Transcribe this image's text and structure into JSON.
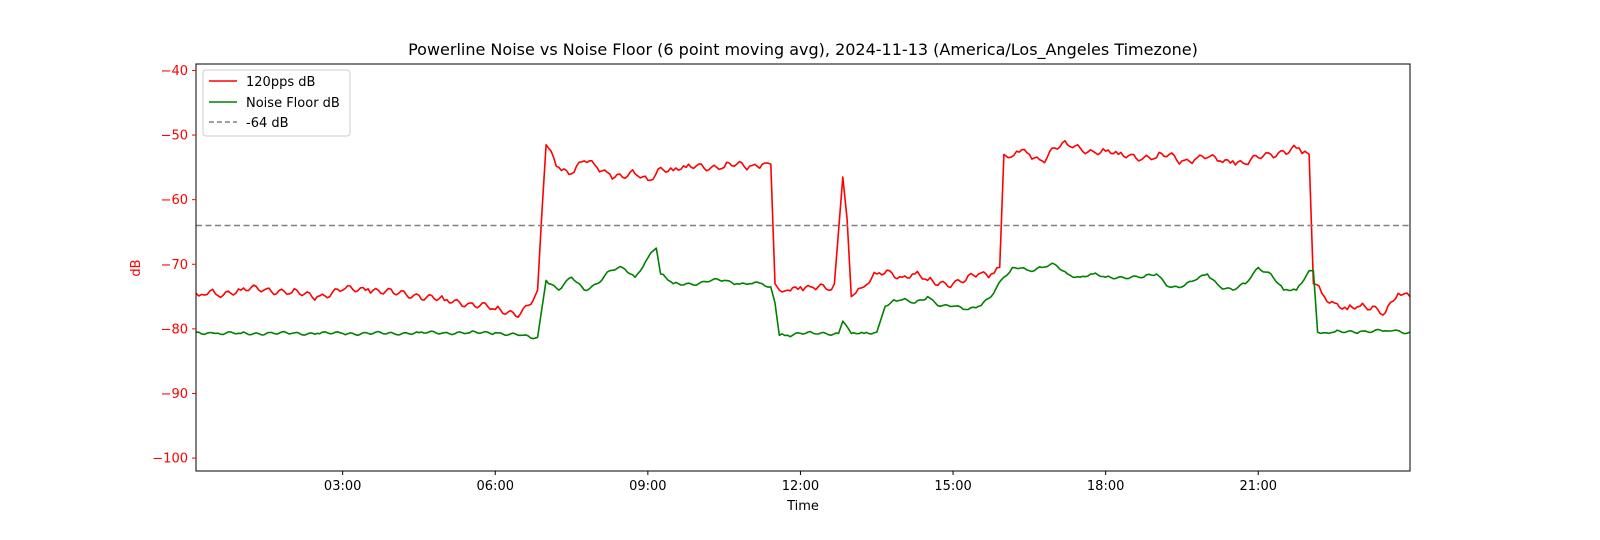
{
  "chart_data": {
    "type": "line",
    "title": "Powerline Noise vs Noise Floor (6 point moving avg), 2024-11-13 (America/Los_Angeles Timezone)",
    "xlabel": "Time",
    "ylabel": "dB",
    "xlim": [
      "00:07",
      "23:59"
    ],
    "ylim": [
      -102,
      -39
    ],
    "x_ticks": [
      "03:00",
      "06:00",
      "09:00",
      "12:00",
      "15:00",
      "18:00",
      "21:00"
    ],
    "y_ticks": [
      -40,
      -50,
      -60,
      -70,
      -80,
      -90,
      -100
    ],
    "grid": false,
    "legend_position": "top-left",
    "colors": {
      "axis_y": "#ff0000",
      "series_1": "#ff0000",
      "series_2": "#008000",
      "reference": "#808080"
    },
    "series": [
      {
        "name": "120pps dB",
        "x": [
          "00:07",
          "00:30",
          "01:00",
          "01:30",
          "02:00",
          "02:30",
          "03:00",
          "03:30",
          "04:00",
          "04:30",
          "05:00",
          "05:30",
          "06:00",
          "06:30",
          "06:45",
          "06:50",
          "06:55",
          "07:00",
          "07:15",
          "07:30",
          "07:45",
          "08:00",
          "08:15",
          "08:30",
          "08:45",
          "09:00",
          "09:15",
          "09:30",
          "09:45",
          "10:00",
          "10:15",
          "10:30",
          "10:45",
          "11:00",
          "11:15",
          "11:25",
          "11:30",
          "11:35",
          "11:45",
          "12:00",
          "12:15",
          "12:30",
          "12:40",
          "12:50",
          "12:55",
          "13:00",
          "13:05",
          "13:15",
          "13:30",
          "13:45",
          "14:00",
          "14:15",
          "14:30",
          "14:45",
          "15:00",
          "15:15",
          "15:30",
          "15:45",
          "15:55",
          "16:00",
          "16:05",
          "16:15",
          "16:30",
          "16:45",
          "17:00",
          "17:15",
          "17:30",
          "17:45",
          "18:00",
          "18:15",
          "18:30",
          "18:45",
          "19:00",
          "19:15",
          "19:30",
          "19:45",
          "20:00",
          "20:15",
          "20:30",
          "20:45",
          "21:00",
          "21:15",
          "21:30",
          "21:45",
          "21:55",
          "22:00",
          "22:05",
          "22:15",
          "22:30",
          "22:45",
          "23:00",
          "23:15",
          "23:30",
          "23:45",
          "23:59"
        ],
        "values": [
          -74.5,
          -74.6,
          -74.0,
          -73.8,
          -74.4,
          -75.0,
          -74.0,
          -73.8,
          -74.5,
          -74.8,
          -75.6,
          -76.0,
          -77.0,
          -77.6,
          -75.5,
          -74.0,
          -62.0,
          -51.5,
          -55.0,
          -56.0,
          -54.0,
          -55.0,
          -56.0,
          -56.5,
          -56.0,
          -57.0,
          -55.0,
          -55.5,
          -55.0,
          -54.5,
          -55.0,
          -55.0,
          -54.5,
          -54.8,
          -54.5,
          -54.5,
          -73.0,
          -74.0,
          -74.0,
          -73.5,
          -73.6,
          -73.8,
          -73.0,
          -56.5,
          -63.0,
          -75.0,
          -74.5,
          -73.5,
          -71.5,
          -71.0,
          -72.0,
          -71.5,
          -72.5,
          -72.8,
          -73.0,
          -72.5,
          -71.5,
          -71.5,
          -70.5,
          -53.0,
          -53.5,
          -52.5,
          -53.0,
          -54.0,
          -52.0,
          -51.5,
          -52.0,
          -52.5,
          -52.5,
          -53.0,
          -53.0,
          -53.5,
          -53.5,
          -53.0,
          -54.0,
          -53.8,
          -53.5,
          -54.0,
          -54.0,
          -54.5,
          -53.5,
          -53.0,
          -52.5,
          -52.0,
          -52.5,
          -53.0,
          -73.0,
          -74.5,
          -76.0,
          -77.0,
          -76.5,
          -76.5,
          -77.5,
          -74.5,
          -75.0
        ]
      },
      {
        "name": "Noise Floor dB",
        "x": [
          "00:07",
          "00:30",
          "01:00",
          "01:30",
          "02:00",
          "02:30",
          "03:00",
          "03:30",
          "04:00",
          "04:30",
          "05:00",
          "05:30",
          "06:00",
          "06:30",
          "06:45",
          "06:50",
          "07:00",
          "07:15",
          "07:30",
          "07:45",
          "08:00",
          "08:15",
          "08:30",
          "08:45",
          "09:00",
          "09:10",
          "09:15",
          "09:30",
          "09:45",
          "10:00",
          "10:15",
          "10:30",
          "10:45",
          "11:00",
          "11:15",
          "11:25",
          "11:30",
          "11:35",
          "11:45",
          "12:00",
          "12:15",
          "12:30",
          "12:45",
          "12:50",
          "13:00",
          "13:15",
          "13:30",
          "13:40",
          "13:50",
          "14:00",
          "14:15",
          "14:30",
          "14:45",
          "15:00",
          "15:15",
          "15:30",
          "15:45",
          "16:00",
          "16:10",
          "16:30",
          "16:45",
          "17:00",
          "17:15",
          "17:30",
          "17:45",
          "18:00",
          "18:15",
          "18:30",
          "18:45",
          "19:00",
          "19:15",
          "19:30",
          "19:45",
          "20:00",
          "20:15",
          "20:30",
          "20:45",
          "21:00",
          "21:15",
          "21:30",
          "21:45",
          "22:00",
          "22:05",
          "22:10",
          "22:30",
          "23:00",
          "23:30",
          "23:59"
        ],
        "values": [
          -80.5,
          -80.7,
          -80.7,
          -80.7,
          -80.7,
          -80.7,
          -80.7,
          -80.7,
          -80.7,
          -80.6,
          -80.6,
          -80.6,
          -80.6,
          -81.0,
          -81.5,
          -81.3,
          -72.5,
          -74.0,
          -72.0,
          -74.0,
          -73.0,
          -71.0,
          -70.5,
          -72.0,
          -69.0,
          -67.5,
          -71.5,
          -73.0,
          -73.0,
          -73.0,
          -72.5,
          -72.5,
          -73.0,
          -73.0,
          -73.0,
          -73.5,
          -76.0,
          -81.0,
          -81.0,
          -80.7,
          -80.7,
          -80.7,
          -80.7,
          -78.8,
          -80.7,
          -80.7,
          -80.5,
          -76.5,
          -75.5,
          -75.5,
          -76.0,
          -75.0,
          -76.5,
          -76.5,
          -77.0,
          -76.5,
          -75.0,
          -72.0,
          -70.5,
          -71.0,
          -70.5,
          -70.0,
          -71.5,
          -72.0,
          -71.5,
          -72.0,
          -72.0,
          -72.0,
          -72.0,
          -71.5,
          -73.5,
          -73.5,
          -72.5,
          -71.5,
          -73.5,
          -74.0,
          -73.0,
          -70.5,
          -71.5,
          -74.0,
          -74.0,
          -71.0,
          -71.0,
          -80.5,
          -80.5,
          -80.4,
          -80.3,
          -80.5
        ]
      },
      {
        "name": "-64 dB",
        "style": "dashed",
        "constant": -64
      }
    ]
  }
}
